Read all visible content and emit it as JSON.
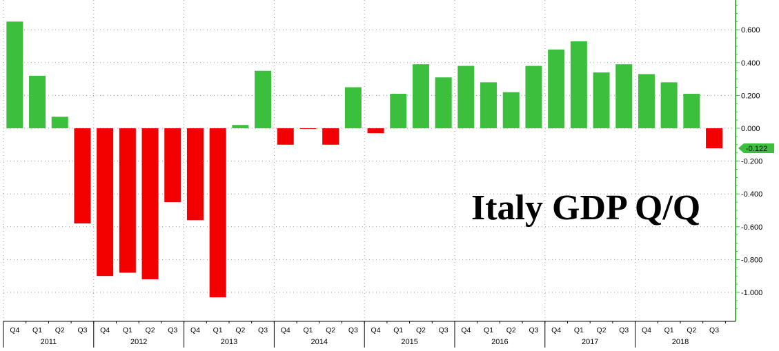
{
  "chart_data": {
    "type": "bar",
    "title": "Italy GDP Q/Q",
    "categories": [
      "Q4",
      "Q1",
      "Q2",
      "Q3",
      "Q4",
      "Q1",
      "Q2",
      "Q3",
      "Q4",
      "Q1",
      "Q2",
      "Q3",
      "Q4",
      "Q1",
      "Q2",
      "Q3",
      "Q4",
      "Q1",
      "Q2",
      "Q3",
      "Q4",
      "Q1",
      "Q2",
      "Q3",
      "Q4",
      "Q1",
      "Q2",
      "Q3",
      "Q4",
      "Q1",
      "Q2",
      "Q3"
    ],
    "year_labels": [
      "2011",
      "2012",
      "2013",
      "2014",
      "2015",
      "2016",
      "2017",
      "2018"
    ],
    "values": [
      0.65,
      0.32,
      0.07,
      -0.58,
      -0.9,
      -0.88,
      -0.92,
      -0.45,
      -0.56,
      -1.03,
      0.02,
      0.35,
      -0.1,
      -0.003,
      -0.1,
      0.25,
      -0.03,
      0.21,
      0.39,
      0.31,
      0.38,
      0.28,
      0.22,
      0.38,
      0.48,
      0.53,
      0.34,
      0.39,
      0.33,
      0.28,
      0.21,
      -0.122
    ],
    "ylim": [
      -1.15,
      0.78
    ],
    "yticks": [
      "0.600",
      "0.400",
      "0.200",
      "0.000",
      "-0.200",
      "-0.400",
      "-0.600",
      "-0.800",
      "-1.000"
    ],
    "ytick_values": [
      0.6,
      0.4,
      0.2,
      0.0,
      -0.2,
      -0.4,
      -0.6,
      -0.8,
      -1.0
    ],
    "last_value_label": "-0.122",
    "grid": true,
    "colors": {
      "positive": "#3cbf3c",
      "negative": "#f20000",
      "axis": "#3cbf3c",
      "grid": "#9a9a9a"
    }
  }
}
